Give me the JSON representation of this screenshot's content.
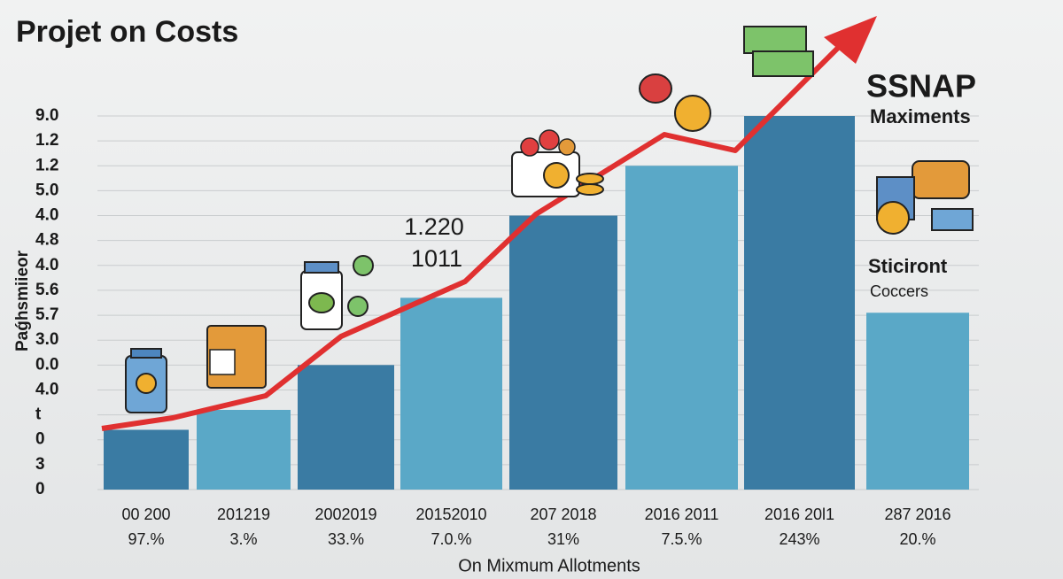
{
  "chart_data": {
    "type": "bar",
    "title": "Projet on Costs",
    "x_label": "On Mixmum Allotments",
    "y_label": "Paǵhsmiieor",
    "categories": [
      "00 200",
      "201219",
      "2002019",
      "20152010",
      "207 2018",
      "2016 2011",
      "2016 20l1",
      "287 2016"
    ],
    "category_sublabels": [
      "97.%",
      "3.%",
      "33.%",
      "7.0.%",
      "31%",
      "7.5.%",
      "243%",
      "20.%"
    ],
    "values": [
      2.4,
      3.2,
      5.0,
      7.7,
      11.0,
      13.0,
      15.0,
      7.1
    ],
    "colors": [
      "#3a7ba3",
      "#5aa8c7",
      "#3a7ba3",
      "#5aa8c7",
      "#3a7ba3",
      "#5aa8c7",
      "#3a7ba3",
      "#5aa8c7"
    ],
    "ylim": [
      0,
      15
    ],
    "yticks": [
      0,
      {
        "value": 1,
        "label": "3"
      },
      {
        "value": 2,
        "label": "0"
      },
      {
        "value": 3,
        "label": "t"
      },
      {
        "value": 4,
        "label": "4.0"
      },
      {
        "value": 5,
        "label": "0.0"
      },
      {
        "value": 6,
        "label": "3.0"
      },
      {
        "value": 7,
        "label": "5.7"
      },
      {
        "value": 8,
        "label": "5.6"
      },
      {
        "value": 9,
        "label": "4.0"
      },
      {
        "value": 10,
        "label": "4.8"
      },
      {
        "value": 11,
        "label": "4.0"
      },
      {
        "value": 12,
        "label": "5.0"
      },
      {
        "value": 13,
        "label": "1.2"
      },
      {
        "value": 14,
        "label": "1.2"
      },
      {
        "value": 15,
        "label": "9.0"
      }
    ],
    "grid": true,
    "annotations": [
      "1.220",
      "1011",
      "SSNAP",
      "Maximents",
      "Sticiront",
      "Coccers"
    ]
  }
}
